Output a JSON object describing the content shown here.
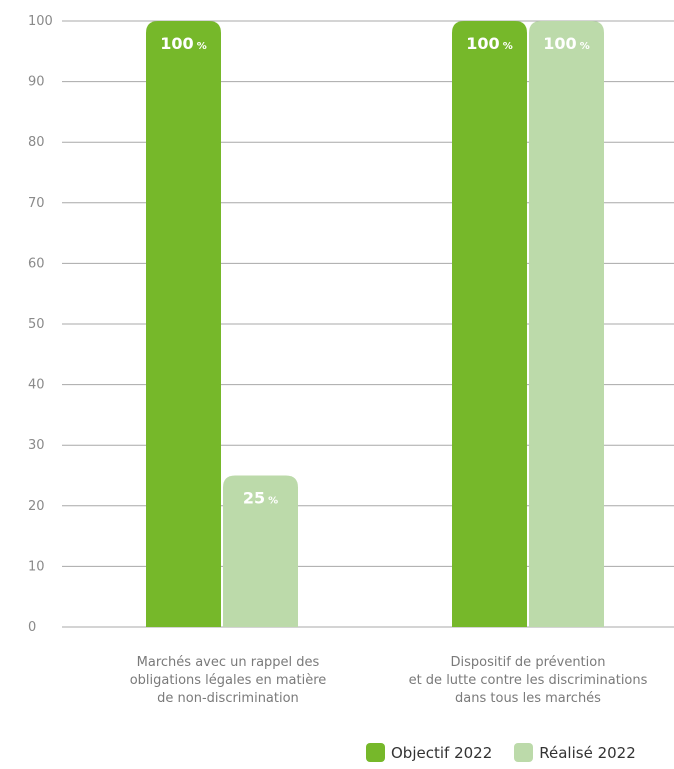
{
  "chart_data": {
    "type": "bar",
    "categories": [
      [
        "Marchés avec un rappel des",
        "obligations légales en matière",
        "de non-discrimination"
      ],
      [
        "Dispositif de prévention",
        "et de lutte contre les discriminations",
        "dans tous les marchés"
      ]
    ],
    "series": [
      {
        "name": "Objectif 2022",
        "values": [
          100,
          100
        ],
        "color": "#76b82a"
      },
      {
        "name": "Réalisé 2022",
        "values": [
          25,
          100
        ],
        "color": "#bcdaaa"
      }
    ],
    "data_labels": [
      [
        "100",
        "100"
      ],
      [
        "25",
        "100"
      ]
    ],
    "data_label_unit": "%",
    "ylim": [
      0,
      100
    ],
    "yticks": [
      0,
      10,
      20,
      30,
      40,
      50,
      60,
      70,
      80,
      90,
      100
    ],
    "grid": true,
    "legend": "bottom"
  }
}
